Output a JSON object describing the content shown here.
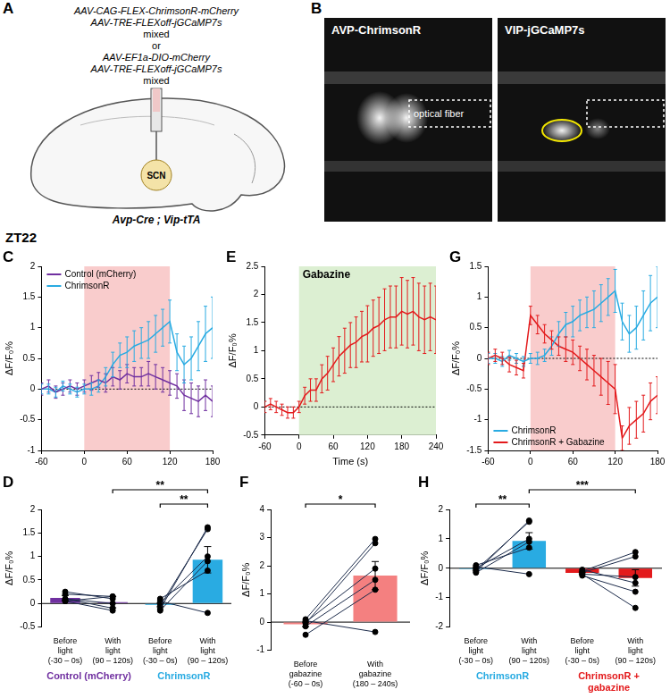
{
  "panel_a": {
    "letter": "A",
    "vectors": [
      "AAV-CAG-FLEX-ChrimsonR-mCherry",
      "AAV-TRE-FLEXoff-jGCaMP7s",
      "mixed",
      "or",
      "AAV-EF1a-DIO-mCherry",
      "AAV-TRE-FLEXoff-jGCaMP7s",
      "mixed"
    ],
    "region": "SCN",
    "mouse": "Avp-Cre ; Vip-tTA"
  },
  "panel_b": {
    "letter": "B",
    "images": [
      {
        "title": "AVP-ChrimsonR",
        "label": "optical fiber"
      },
      {
        "title": "VIP-jGCaMP7s"
      }
    ]
  },
  "condition_label": "ZT22",
  "chart_data": [
    {
      "panel": "C",
      "type": "line",
      "ylabel": "ΔF/F₀%",
      "legend": "upper left",
      "xlim": [
        -60,
        180
      ],
      "xticks": [
        -60,
        0,
        60,
        120,
        180
      ],
      "ylim": [
        -1,
        2
      ],
      "yticks": [
        -1,
        -0.5,
        0,
        0.5,
        1,
        1.5,
        2
      ],
      "highlight": {
        "from": 0,
        "to": 120,
        "color": "#f9cccc"
      },
      "x": [
        -60,
        -50,
        -40,
        -30,
        -20,
        -10,
        0,
        10,
        20,
        30,
        40,
        50,
        60,
        70,
        80,
        90,
        100,
        110,
        120,
        130,
        140,
        150,
        160,
        170,
        180
      ],
      "series": [
        {
          "name": "Control (mCherry)",
          "color": "#7030a0",
          "values": [
            0,
            0.05,
            -0.05,
            0,
            0.05,
            0,
            0.05,
            0.1,
            0.15,
            0.1,
            0.2,
            0.15,
            0.25,
            0.2,
            0.2,
            0.25,
            0.2,
            0.15,
            0.1,
            0.05,
            -0.1,
            -0.15,
            -0.2,
            -0.1,
            -0.2
          ],
          "errors": [
            0.1,
            0.1,
            0.1,
            0.1,
            0.1,
            0.1,
            0.1,
            0.12,
            0.12,
            0.15,
            0.15,
            0.15,
            0.15,
            0.15,
            0.15,
            0.2,
            0.2,
            0.2,
            0.2,
            0.2,
            0.25,
            0.25,
            0.25,
            0.25,
            0.25
          ]
        },
        {
          "name": "ChrimsonR",
          "color": "#29abe2",
          "values": [
            0,
            0,
            -0.05,
            0.05,
            0,
            -0.05,
            0,
            0,
            0.05,
            0.2,
            0.4,
            0.55,
            0.6,
            0.7,
            0.75,
            0.8,
            0.9,
            1.0,
            1.1,
            0.6,
            0.4,
            0.5,
            0.7,
            0.9,
            1.0
          ],
          "errors": [
            0.08,
            0.08,
            0.08,
            0.08,
            0.08,
            0.08,
            0.08,
            0.1,
            0.1,
            0.15,
            0.2,
            0.2,
            0.25,
            0.25,
            0.25,
            0.3,
            0.3,
            0.3,
            0.35,
            0.3,
            0.3,
            0.35,
            0.4,
            0.45,
            0.5
          ]
        }
      ]
    },
    {
      "panel": "E",
      "type": "line",
      "ylabel": "ΔF/F₀%",
      "xlabel": "Time (s)",
      "xlim": [
        -60,
        240
      ],
      "xticks": [
        -60,
        0,
        60,
        120,
        180,
        240
      ],
      "ylim": [
        -0.5,
        2.5
      ],
      "yticks": [
        -0.5,
        0,
        0.5,
        1,
        1.5,
        2,
        2.5
      ],
      "highlight": {
        "from": 0,
        "to": 240,
        "color": "#dcefd2",
        "label": "Gabazine"
      },
      "x": [
        -60,
        -50,
        -40,
        -30,
        -20,
        -10,
        0,
        10,
        20,
        30,
        40,
        50,
        60,
        70,
        80,
        90,
        100,
        110,
        120,
        130,
        140,
        150,
        160,
        170,
        180,
        190,
        200,
        210,
        220,
        230,
        240
      ],
      "series": [
        {
          "name": "Gabazine",
          "color": "#e31a1c",
          "values": [
            0,
            0.05,
            0,
            -0.05,
            -0.1,
            -0.1,
            0,
            0.2,
            0.3,
            0.3,
            0.5,
            0.6,
            0.75,
            0.9,
            1.0,
            1.1,
            1.15,
            1.25,
            1.3,
            1.4,
            1.45,
            1.55,
            1.6,
            1.6,
            1.7,
            1.65,
            1.7,
            1.6,
            1.55,
            1.6,
            1.55
          ],
          "errors": [
            0.1,
            0.1,
            0.1,
            0.1,
            0.1,
            0.1,
            0.1,
            0.15,
            0.2,
            0.2,
            0.25,
            0.3,
            0.3,
            0.35,
            0.4,
            0.4,
            0.45,
            0.45,
            0.5,
            0.5,
            0.5,
            0.55,
            0.55,
            0.55,
            0.6,
            0.6,
            0.6,
            0.6,
            0.6,
            0.6,
            0.6
          ]
        }
      ]
    },
    {
      "panel": "G",
      "type": "line",
      "ylabel": "ΔF/F₀%",
      "legend": "lower left",
      "xlim": [
        -60,
        180
      ],
      "xticks": [
        -60,
        0,
        60,
        120,
        180
      ],
      "ylim": [
        -1.5,
        1.5
      ],
      "yticks": [
        -1.5,
        -1,
        -0.5,
        0,
        0.5,
        1,
        1.5
      ],
      "highlight": {
        "from": 0,
        "to": 120,
        "color": "#f9cccc"
      },
      "x": [
        -60,
        -50,
        -40,
        -30,
        -20,
        -10,
        0,
        10,
        20,
        30,
        40,
        50,
        60,
        70,
        80,
        90,
        100,
        110,
        120,
        130,
        140,
        150,
        160,
        170,
        180
      ],
      "series": [
        {
          "name": "ChrimsonR",
          "color": "#29abe2",
          "values": [
            0,
            0,
            -0.05,
            0.05,
            0,
            -0.05,
            0,
            0,
            0.05,
            0.2,
            0.4,
            0.55,
            0.6,
            0.7,
            0.75,
            0.8,
            0.9,
            1.0,
            1.1,
            0.6,
            0.4,
            0.5,
            0.7,
            0.9,
            1.0
          ],
          "errors": [
            0.08,
            0.08,
            0.08,
            0.08,
            0.08,
            0.08,
            0.08,
            0.1,
            0.1,
            0.15,
            0.2,
            0.2,
            0.25,
            0.25,
            0.25,
            0.3,
            0.3,
            0.3,
            0.35,
            0.3,
            0.3,
            0.35,
            0.4,
            0.45,
            0.5
          ]
        },
        {
          "name": "ChrimsonR + Gabazine",
          "color": "#e31a1c",
          "values": [
            0,
            0.05,
            0,
            -0.1,
            -0.15,
            -0.2,
            0.7,
            0.55,
            0.4,
            0.3,
            0.2,
            0.15,
            0.1,
            0.0,
            -0.1,
            -0.2,
            -0.3,
            -0.4,
            -0.5,
            -1.3,
            -1.1,
            -1.0,
            -0.9,
            -0.7,
            -0.6
          ],
          "errors": [
            0.1,
            0.1,
            0.1,
            0.12,
            0.12,
            0.12,
            0.15,
            0.15,
            0.15,
            0.15,
            0.15,
            0.2,
            0.2,
            0.2,
            0.25,
            0.25,
            0.3,
            0.35,
            0.4,
            0.2,
            0.3,
            0.3,
            0.3,
            0.3,
            0.3
          ]
        }
      ]
    },
    {
      "panel": "D",
      "type": "bar",
      "ylabel": "ΔF/F₀%",
      "categories": [
        "Before light (-30 – 0s)",
        "With light (90 – 120s)",
        "Before light (-30 – 0s)",
        "With light (90 – 120s)"
      ],
      "values": [
        0.12,
        0.03,
        -0.03,
        0.93
      ],
      "errors": [
        0.05,
        0.12,
        0.04,
        0.28
      ],
      "colors": [
        "#7030a0",
        "#7030a0",
        "#29abe2",
        "#29abe2"
      ],
      "ylim": [
        -0.5,
        2
      ],
      "yticks": [
        -0.5,
        0,
        0.5,
        1,
        1.5,
        2
      ],
      "groups": [
        {
          "name": "Control (mCherry)",
          "color": "#7030a0",
          "from": 0,
          "to": 1
        },
        {
          "name": "ChrimsonR",
          "color": "#29abe2",
          "from": 2,
          "to": 3
        }
      ],
      "pairs": [
        {
          "from": 0,
          "to": 1,
          "points": [
            [
              0.2,
              0.15
            ],
            [
              0.25,
              0.1
            ],
            [
              0.1,
              0.0
            ],
            [
              0.05,
              -0.15
            ],
            [
              0.1,
              -0.1
            ],
            [
              0.05,
              0.15
            ]
          ]
        },
        {
          "from": 2,
          "to": 3,
          "points": [
            [
              -0.12,
              1.62
            ],
            [
              -0.05,
              1.58
            ],
            [
              0,
              1.0
            ],
            [
              -0.15,
              0.9
            ],
            [
              0.1,
              0.7
            ],
            [
              0.05,
              -0.2
            ]
          ]
        }
      ],
      "brackets": [
        {
          "from": 2,
          "to": 3,
          "label": "**"
        },
        {
          "from": 1,
          "to": 3,
          "label": "**"
        }
      ]
    },
    {
      "panel": "F",
      "type": "bar",
      "ylabel": "ΔF/F₀%",
      "categories": [
        "Before gabazine (-60 – 0s)",
        "With gabazine (180 – 240s)"
      ],
      "values": [
        -0.08,
        1.65
      ],
      "errors": [
        0.08,
        0.5
      ],
      "colors": [
        "#f48080",
        "#f48080"
      ],
      "ylim": [
        -1,
        4
      ],
      "yticks": [
        -1,
        0,
        1,
        2,
        3,
        4
      ],
      "pairs": [
        {
          "from": 0,
          "to": 1,
          "points": [
            [
              0.1,
              2.95
            ],
            [
              -0.05,
              2.8
            ],
            [
              0,
              1.9
            ],
            [
              -0.15,
              1.5
            ],
            [
              -0.45,
              1.15
            ],
            [
              0.05,
              -0.35
            ]
          ]
        }
      ],
      "brackets": [
        {
          "from": 0,
          "to": 1,
          "label": "*"
        }
      ]
    },
    {
      "panel": "H",
      "type": "bar",
      "ylabel": "ΔF/F₀%",
      "categories": [
        "Before light (-30 – 0s)",
        "With light (90 – 120s)",
        "Before light (-30 – 0s)",
        "With light (90 – 120s)"
      ],
      "values": [
        -0.03,
        0.93,
        -0.16,
        -0.33
      ],
      "errors": [
        0.04,
        0.28,
        0.03,
        0.28
      ],
      "colors": [
        "#29abe2",
        "#29abe2",
        "#e31a1c",
        "#e31a1c"
      ],
      "ylim": [
        -2,
        2
      ],
      "yticks": [
        -2,
        -1,
        0,
        1,
        2
      ],
      "groups": [
        {
          "name": "ChrimsonR",
          "color": "#29abe2",
          "from": 0,
          "to": 1
        },
        {
          "name": "ChrimsonR + gabazine",
          "color": "#e31a1c",
          "from": 2,
          "to": 3
        }
      ],
      "pairs": [
        {
          "from": 0,
          "to": 1,
          "points": [
            [
              -0.12,
              1.62
            ],
            [
              -0.05,
              1.58
            ],
            [
              0,
              1.0
            ],
            [
              -0.15,
              0.9
            ],
            [
              0.1,
              0.7
            ],
            [
              0.05,
              -0.2
            ]
          ]
        },
        {
          "from": 2,
          "to": 3,
          "points": [
            [
              -0.1,
              0.55
            ],
            [
              -0.15,
              0.4
            ],
            [
              -0.2,
              -0.3
            ],
            [
              -0.05,
              -0.5
            ],
            [
              -0.25,
              -0.8
            ],
            [
              -0.2,
              -1.35
            ]
          ]
        }
      ],
      "brackets": [
        {
          "from": 0,
          "to": 1,
          "label": "**"
        },
        {
          "from": 1,
          "to": 3,
          "label": "***"
        }
      ]
    }
  ]
}
